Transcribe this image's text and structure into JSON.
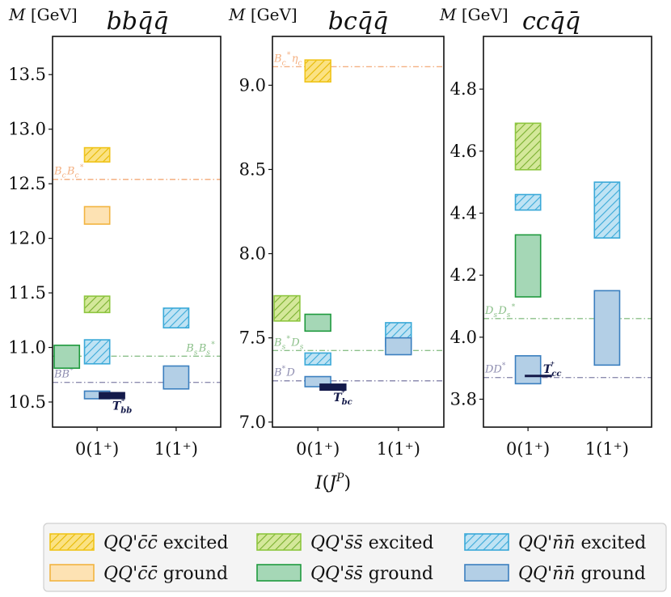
{
  "chart_data": {
    "type": "floating-bar",
    "xlabel": "I(J^P)",
    "ylabel": "M [GeV]",
    "legend_position": "bottom",
    "legend": [
      {
        "key": "cc_exc",
        "label": "QQ'c̄c̄ excited",
        "face": "#fbe283",
        "edge": "#f0c419",
        "hatch": "#e6b800"
      },
      {
        "key": "cc_gr",
        "label": "QQ'c̄c̄ ground",
        "face": "#fde2b3",
        "edge": "#f2b440",
        "hatch": null
      },
      {
        "key": "ss_exc",
        "label": "QQ's̄s̄ excited",
        "face": "#d4e89a",
        "edge": "#8dc63f",
        "hatch": "#7ab030"
      },
      {
        "key": "ss_gr",
        "label": "QQ's̄s̄ ground",
        "face": "#a5d7b6",
        "edge": "#1f9a3e",
        "hatch": null
      },
      {
        "key": "nn_exc",
        "label": "QQ'n̄n̄ excited",
        "face": "#bfe3f4",
        "edge": "#3aa9d8",
        "hatch": "#3aa9d8"
      },
      {
        "key": "nn_gr",
        "label": "QQ'n̄n̄ ground",
        "face": "#b3cfe6",
        "edge": "#3b7fbf",
        "hatch": null
      }
    ],
    "panels": [
      {
        "title": "bbq̄q̄",
        "categories": [
          "0(1⁺)",
          "1(1⁺)"
        ],
        "ylim": [
          10.27,
          13.85
        ],
        "yticks": [
          10.5,
          11.0,
          11.5,
          12.0,
          12.5,
          13.0,
          13.5
        ],
        "ytick_labels": [
          "10.5",
          "11.0",
          "11.5",
          "12.0",
          "12.5",
          "13.0",
          "13.5"
        ],
        "bars": [
          {
            "cat": 0,
            "offset": 0.0,
            "low": 12.7,
            "high": 12.83,
            "style": "cc_exc"
          },
          {
            "cat": 0,
            "offset": 0.0,
            "low": 12.13,
            "high": 12.29,
            "style": "cc_gr"
          },
          {
            "cat": 0,
            "offset": 0.0,
            "low": 11.32,
            "high": 11.47,
            "style": "ss_exc"
          },
          {
            "cat": 0,
            "offset": 0.0,
            "low": 10.85,
            "high": 11.07,
            "style": "nn_exc"
          },
          {
            "cat": 0,
            "offset": -0.18,
            "low": 10.81,
            "high": 11.02,
            "style": "ss_gr"
          },
          {
            "cat": 0,
            "offset": 0.0,
            "low": 10.53,
            "high": 10.6,
            "style": "nn_gr"
          },
          {
            "cat": 1,
            "offset": 0.0,
            "low": 11.18,
            "high": 11.36,
            "style": "nn_exc"
          },
          {
            "cat": 1,
            "offset": 0.0,
            "low": 10.62,
            "high": 10.83,
            "style": "nn_gr"
          }
        ],
        "thresholds": [
          {
            "value": 12.54,
            "label": "B_cB_c*",
            "color": "#f4b183",
            "label_side": "left"
          },
          {
            "value": 10.92,
            "label": "B_sB_s*",
            "color": "#8cc08a",
            "label_side": "right"
          },
          {
            "value": 10.68,
            "label": "BB*",
            "color": "#8e8db0",
            "label_side": "left"
          }
        ],
        "bound_state": {
          "label": "T_bb⁺",
          "value": 10.555
        }
      },
      {
        "title": "bcq̄q̄",
        "categories": [
          "0(1⁺)",
          "1(1⁺)"
        ],
        "ylim": [
          6.97,
          9.29
        ],
        "yticks": [
          7.0,
          7.5,
          8.0,
          8.5,
          9.0
        ],
        "ytick_labels": [
          "7.0",
          "7.5",
          "8.0",
          "8.5",
          "9.0"
        ],
        "bars": [
          {
            "cat": 0,
            "offset": 0.0,
            "low": 9.02,
            "high": 9.15,
            "style": "cc_exc"
          },
          {
            "cat": 0,
            "offset": -0.18,
            "low": 7.6,
            "high": 7.75,
            "style": "ss_exc"
          },
          {
            "cat": 0,
            "offset": 0.0,
            "low": 7.54,
            "high": 7.64,
            "style": "ss_gr"
          },
          {
            "cat": 0,
            "offset": 0.0,
            "low": 7.34,
            "high": 7.41,
            "style": "nn_exc"
          },
          {
            "cat": 0,
            "offset": 0.0,
            "low": 7.21,
            "high": 7.27,
            "style": "nn_gr"
          },
          {
            "cat": 1,
            "offset": 0.0,
            "low": 7.45,
            "high": 7.59,
            "style": "nn_exc"
          },
          {
            "cat": 1,
            "offset": 0.0,
            "low": 7.4,
            "high": 7.5,
            "style": "nn_gr"
          }
        ],
        "thresholds": [
          {
            "value": 9.11,
            "label": "B_c*η_c",
            "color": "#f4b183",
            "label_side": "left"
          },
          {
            "value": 7.425,
            "label": "B_s*D_s",
            "color": "#8cc08a",
            "label_side": "left"
          },
          {
            "value": 7.245,
            "label": "B*D",
            "color": "#8e8db0",
            "label_side": "left"
          }
        ],
        "bound_state": {
          "label": "T_bc⁺",
          "value": 7.205
        }
      },
      {
        "title": "ccq̄q̄",
        "categories": [
          "0(1⁺)",
          "1(1⁺)"
        ],
        "ylim": [
          3.71,
          4.97
        ],
        "yticks": [
          3.8,
          4.0,
          4.2,
          4.4,
          4.6,
          4.8
        ],
        "ytick_labels": [
          "3.8",
          "4.0",
          "4.2",
          "4.4",
          "4.6",
          "4.8"
        ],
        "bars": [
          {
            "cat": 0,
            "offset": 0.0,
            "low": 4.54,
            "high": 4.69,
            "style": "ss_exc"
          },
          {
            "cat": 0,
            "offset": 0.0,
            "low": 4.41,
            "high": 4.46,
            "style": "nn_exc"
          },
          {
            "cat": 0,
            "offset": 0.0,
            "low": 4.13,
            "high": 4.33,
            "style": "ss_gr"
          },
          {
            "cat": 0,
            "offset": 0.0,
            "low": 3.85,
            "high": 3.94,
            "style": "nn_gr"
          },
          {
            "cat": 1,
            "offset": 0.0,
            "low": 4.32,
            "high": 4.5,
            "style": "nn_exc"
          },
          {
            "cat": 1,
            "offset": 0.0,
            "low": 3.91,
            "high": 4.15,
            "style": "nn_gr"
          }
        ],
        "thresholds": [
          {
            "value": 4.06,
            "label": "D_sD_s*",
            "color": "#8cc08a",
            "label_side": "left"
          },
          {
            "value": 3.87,
            "label": "DD*",
            "color": "#8e8db0",
            "label_side": "left"
          }
        ],
        "bound_state": {
          "label": "T_cc⁺",
          "value": 3.875
        }
      }
    ]
  }
}
